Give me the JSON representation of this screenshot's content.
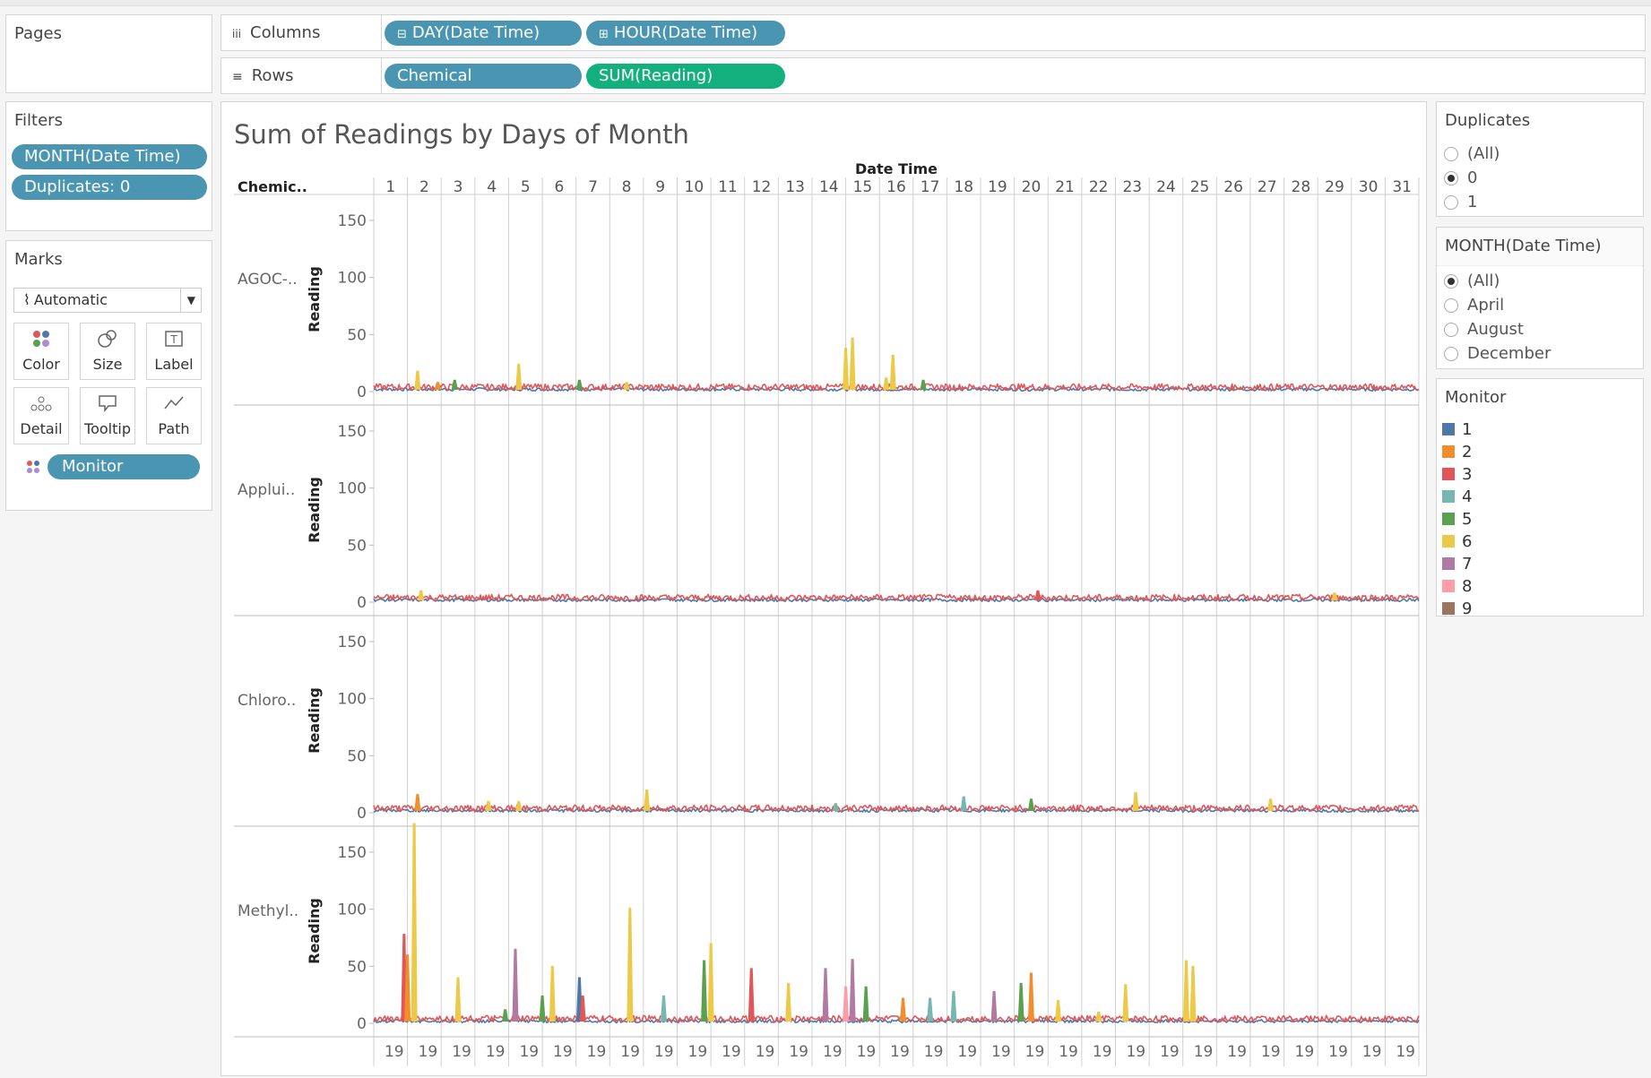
{
  "shelves": {
    "pages_title": "Pages",
    "columns_label": "Columns",
    "rows_label": "Rows",
    "columns_pills": [
      "DAY(Date Time)",
      "HOUR(Date Time)"
    ],
    "rows_pills": [
      "Chemical",
      "SUM(Reading)"
    ]
  },
  "filters": {
    "title": "Filters",
    "pills": [
      "MONTH(Date Time)",
      "Duplicates: 0"
    ]
  },
  "marks": {
    "title": "Marks",
    "type_select": "Automatic",
    "buttons": [
      {
        "label": "Color",
        "icon": "color-icon"
      },
      {
        "label": "Size",
        "icon": "size-icon"
      },
      {
        "label": "Label",
        "icon": "label-icon"
      },
      {
        "label": "Detail",
        "icon": "detail-icon"
      },
      {
        "label": "Tooltip",
        "icon": "tooltip-icon"
      },
      {
        "label": "Path",
        "icon": "path-icon"
      }
    ],
    "monitor_pill": "Monitor"
  },
  "duplicates_filter": {
    "title": "Duplicates",
    "options": [
      "(All)",
      "0",
      "1"
    ],
    "selected": "0"
  },
  "month_filter": {
    "title": "MONTH(Date Time)",
    "options": [
      "(All)",
      "April",
      "August",
      "December"
    ],
    "selected": "(All)"
  },
  "legend": {
    "title": "Monitor",
    "items": [
      {
        "label": "1",
        "color": "#4e79a7"
      },
      {
        "label": "2",
        "color": "#f28e2b"
      },
      {
        "label": "3",
        "color": "#e15759"
      },
      {
        "label": "4",
        "color": "#76b7b2"
      },
      {
        "label": "5",
        "color": "#59a14f"
      },
      {
        "label": "6",
        "color": "#edc948"
      },
      {
        "label": "7",
        "color": "#b07aa1"
      },
      {
        "label": "8",
        "color": "#ff9da7"
      },
      {
        "label": "9",
        "color": "#9c755f"
      }
    ]
  },
  "chart_data": {
    "type": "line",
    "title": "Sum of Readings by Days of Month",
    "column_header": "Date Time",
    "row_header": "Chemic..",
    "ylabel": "Reading",
    "ylim": [
      0,
      175
    ],
    "yticks": [
      0,
      50,
      100,
      150
    ],
    "days": [
      "1",
      "2",
      "3",
      "4",
      "5",
      "6",
      "7",
      "8",
      "9",
      "10",
      "11",
      "12",
      "13",
      "14",
      "15",
      "16",
      "17",
      "18",
      "19",
      "20",
      "21",
      "22",
      "23",
      "24",
      "25",
      "26",
      "27",
      "28",
      "29",
      "30",
      "31"
    ],
    "hour_tick_label": "19",
    "baseline_series": [
      {
        "name": "1",
        "level": 2
      },
      {
        "name": "3",
        "level": 4
      }
    ],
    "rows": [
      {
        "label": "AGOC-..",
        "peaks": [
          {
            "day": 2,
            "pos": 0.3,
            "value": 18,
            "monitor": "6"
          },
          {
            "day": 2,
            "pos": 0.9,
            "value": 8,
            "monitor": "2"
          },
          {
            "day": 3,
            "pos": 0.4,
            "value": 10,
            "monitor": "5"
          },
          {
            "day": 5,
            "pos": 0.3,
            "value": 24,
            "monitor": "6"
          },
          {
            "day": 7,
            "pos": 0.1,
            "value": 10,
            "monitor": "5"
          },
          {
            "day": 8,
            "pos": 0.5,
            "value": 8,
            "monitor": "6"
          },
          {
            "day": 15,
            "pos": 0.0,
            "value": 38,
            "monitor": "6"
          },
          {
            "day": 15,
            "pos": 0.2,
            "value": 47,
            "monitor": "6"
          },
          {
            "day": 16,
            "pos": 0.2,
            "value": 12,
            "monitor": "6"
          },
          {
            "day": 16,
            "pos": 0.4,
            "value": 32,
            "monitor": "6"
          },
          {
            "day": 17,
            "pos": 0.3,
            "value": 10,
            "monitor": "5"
          }
        ]
      },
      {
        "label": "Applui..",
        "peaks": [
          {
            "day": 2,
            "pos": 0.4,
            "value": 10,
            "monitor": "6"
          },
          {
            "day": 20,
            "pos": 0.7,
            "value": 10,
            "monitor": "3"
          },
          {
            "day": 29,
            "pos": 0.5,
            "value": 8,
            "monitor": "6"
          }
        ]
      },
      {
        "label": "Chloro..",
        "peaks": [
          {
            "day": 2,
            "pos": 0.3,
            "value": 16,
            "monitor": "2"
          },
          {
            "day": 4,
            "pos": 0.4,
            "value": 10,
            "monitor": "6"
          },
          {
            "day": 5,
            "pos": 0.3,
            "value": 10,
            "monitor": "6"
          },
          {
            "day": 9,
            "pos": 0.1,
            "value": 20,
            "monitor": "6"
          },
          {
            "day": 14,
            "pos": 0.7,
            "value": 8,
            "monitor": "4"
          },
          {
            "day": 18,
            "pos": 0.5,
            "value": 14,
            "monitor": "4"
          },
          {
            "day": 20,
            "pos": 0.5,
            "value": 12,
            "monitor": "5"
          },
          {
            "day": 23,
            "pos": 0.6,
            "value": 18,
            "monitor": "6"
          },
          {
            "day": 27,
            "pos": 0.6,
            "value": 12,
            "monitor": "6"
          }
        ]
      },
      {
        "label": "Methyl..",
        "peaks": [
          {
            "day": 1,
            "pos": 0.9,
            "value": 78,
            "monitor": "3"
          },
          {
            "day": 2,
            "pos": 0.2,
            "value": 175,
            "monitor": "6"
          },
          {
            "day": 2,
            "pos": 0.0,
            "value": 60,
            "monitor": "2"
          },
          {
            "day": 3,
            "pos": 0.5,
            "value": 40,
            "monitor": "6"
          },
          {
            "day": 4,
            "pos": 0.9,
            "value": 12,
            "monitor": "5"
          },
          {
            "day": 5,
            "pos": 0.2,
            "value": 65,
            "monitor": "7"
          },
          {
            "day": 6,
            "pos": 0.3,
            "value": 50,
            "monitor": "6"
          },
          {
            "day": 6,
            "pos": 0.0,
            "value": 24,
            "monitor": "5"
          },
          {
            "day": 7,
            "pos": 0.1,
            "value": 40,
            "monitor": "1"
          },
          {
            "day": 7,
            "pos": 0.2,
            "value": 24,
            "monitor": "3"
          },
          {
            "day": 8,
            "pos": 0.6,
            "value": 101,
            "monitor": "6"
          },
          {
            "day": 9,
            "pos": 0.6,
            "value": 24,
            "monitor": "4"
          },
          {
            "day": 10,
            "pos": 0.8,
            "value": 55,
            "monitor": "5"
          },
          {
            "day": 11,
            "pos": 0.0,
            "value": 70,
            "monitor": "6"
          },
          {
            "day": 12,
            "pos": 0.2,
            "value": 48,
            "monitor": "3"
          },
          {
            "day": 13,
            "pos": 0.3,
            "value": 35,
            "monitor": "6"
          },
          {
            "day": 14,
            "pos": 0.4,
            "value": 48,
            "monitor": "7"
          },
          {
            "day": 15,
            "pos": 0.2,
            "value": 56,
            "monitor": "7"
          },
          {
            "day": 15,
            "pos": 0.0,
            "value": 32,
            "monitor": "8"
          },
          {
            "day": 15,
            "pos": 0.6,
            "value": 32,
            "monitor": "5"
          },
          {
            "day": 16,
            "pos": 0.7,
            "value": 22,
            "monitor": "2"
          },
          {
            "day": 17,
            "pos": 0.5,
            "value": 22,
            "monitor": "4"
          },
          {
            "day": 18,
            "pos": 0.2,
            "value": 28,
            "monitor": "4"
          },
          {
            "day": 19,
            "pos": 0.4,
            "value": 28,
            "monitor": "7"
          },
          {
            "day": 20,
            "pos": 0.2,
            "value": 35,
            "monitor": "5"
          },
          {
            "day": 20,
            "pos": 0.5,
            "value": 44,
            "monitor": "2"
          },
          {
            "day": 21,
            "pos": 0.3,
            "value": 20,
            "monitor": "6"
          },
          {
            "day": 22,
            "pos": 0.5,
            "value": 10,
            "monitor": "6"
          },
          {
            "day": 23,
            "pos": 0.3,
            "value": 34,
            "monitor": "6"
          },
          {
            "day": 25,
            "pos": 0.1,
            "value": 55,
            "monitor": "6"
          },
          {
            "day": 25,
            "pos": 0.3,
            "value": 50,
            "monitor": "6"
          }
        ]
      }
    ]
  }
}
